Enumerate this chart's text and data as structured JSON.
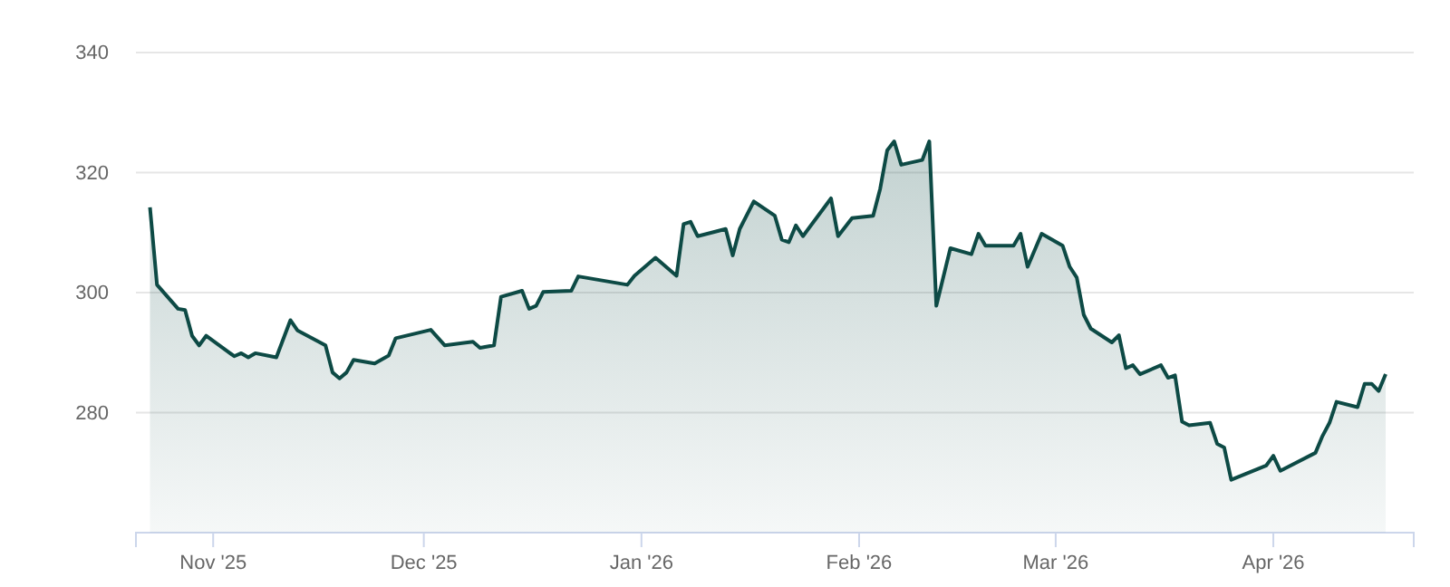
{
  "chart_data": {
    "type": "area",
    "xlim": [
      "2025-10-21",
      "2026-04-21"
    ],
    "ylim": [
      260,
      340
    ],
    "yticks": [
      280,
      300,
      320,
      340
    ],
    "xticks": [
      {
        "value": "2025-11-01",
        "label": "Nov '25"
      },
      {
        "value": "2025-12-01",
        "label": "Dec '25"
      },
      {
        "value": "2026-01-01",
        "label": "Jan '26"
      },
      {
        "value": "2026-02-01",
        "label": "Feb '26"
      },
      {
        "value": "2026-03-01",
        "label": "Mar '26"
      },
      {
        "value": "2026-04-01",
        "label": "Apr '26"
      }
    ],
    "grid": "y",
    "marker": "none",
    "line_style": "solid",
    "x": [
      "2025-10-23",
      "2025-10-24",
      "2025-10-27",
      "2025-10-28",
      "2025-10-29",
      "2025-10-30",
      "2025-10-31",
      "2025-11-04",
      "2025-11-05",
      "2025-11-06",
      "2025-11-07",
      "2025-11-10",
      "2025-11-12",
      "2025-11-13",
      "2025-11-17",
      "2025-11-18",
      "2025-11-19",
      "2025-11-20",
      "2025-11-21",
      "2025-11-24",
      "2025-11-26",
      "2025-11-27",
      "2025-12-02",
      "2025-12-04",
      "2025-12-08",
      "2025-12-09",
      "2025-12-11",
      "2025-12-12",
      "2025-12-15",
      "2025-12-16",
      "2025-12-17",
      "2025-12-18",
      "2025-12-22",
      "2025-12-23",
      "2025-12-30",
      "2025-12-31",
      "2026-01-03",
      "2026-01-06",
      "2026-01-07",
      "2026-01-08",
      "2026-01-09",
      "2026-01-13",
      "2026-01-14",
      "2026-01-15",
      "2026-01-17",
      "2026-01-20",
      "2026-01-21",
      "2026-01-22",
      "2026-01-23",
      "2026-01-24",
      "2026-01-28",
      "2026-01-29",
      "2026-01-31",
      "2026-02-03",
      "2026-02-04",
      "2026-02-05",
      "2026-02-06",
      "2026-02-07",
      "2026-02-10",
      "2026-02-11",
      "2026-02-12",
      "2026-02-14",
      "2026-02-17",
      "2026-02-18",
      "2026-02-19",
      "2026-02-20",
      "2026-02-23",
      "2026-02-24",
      "2026-02-25",
      "2026-02-27",
      "2026-03-02",
      "2026-03-03",
      "2026-03-04",
      "2026-03-05",
      "2026-03-06",
      "2026-03-09",
      "2026-03-10",
      "2026-03-11",
      "2026-03-12",
      "2026-03-13",
      "2026-03-16",
      "2026-03-17",
      "2026-03-18",
      "2026-03-19",
      "2026-03-20",
      "2026-03-23",
      "2026-03-24",
      "2026-03-25",
      "2026-03-26",
      "2026-03-31",
      "2026-04-01",
      "2026-04-02",
      "2026-04-07",
      "2026-04-08",
      "2026-04-09",
      "2026-04-10",
      "2026-04-13",
      "2026-04-14",
      "2026-04-15",
      "2026-04-16",
      "2026-04-17"
    ],
    "series": [
      {
        "color": "#0d4a45",
        "values": [
          314.2,
          301.3,
          297.3,
          297.1,
          292.8,
          291.2,
          292.8,
          289.4,
          289.9,
          289.2,
          289.9,
          289.2,
          295.4,
          293.7,
          291.2,
          286.7,
          285.7,
          286.7,
          288.8,
          288.2,
          289.5,
          292.4,
          293.8,
          291.2,
          291.8,
          290.8,
          291.2,
          299.3,
          300.3,
          297.3,
          297.8,
          300.1,
          300.3,
          302.7,
          301.3,
          302.8,
          305.8,
          302.8,
          311.4,
          311.8,
          309.4,
          310.6,
          306.2,
          310.6,
          315.2,
          312.8,
          308.8,
          308.4,
          311.2,
          309.4,
          315.7,
          309.4,
          312.4,
          312.8,
          317.3,
          323.7,
          325.2,
          321.3,
          322.1,
          325.2,
          297.8,
          307.4,
          306.4,
          309.8,
          307.8,
          307.8,
          307.8,
          309.8,
          304.3,
          309.8,
          307.8,
          304.3,
          302.5,
          296.3,
          294.0,
          291.7,
          292.9,
          287.4,
          287.9,
          286.4,
          287.9,
          285.8,
          286.2,
          278.5,
          277.9,
          278.3,
          274.8,
          274.2,
          268.8,
          271.2,
          272.8,
          270.3,
          273.3,
          276.1,
          278.3,
          281.8,
          280.9,
          284.8,
          284.8,
          283.6,
          286.4
        ]
      }
    ]
  }
}
